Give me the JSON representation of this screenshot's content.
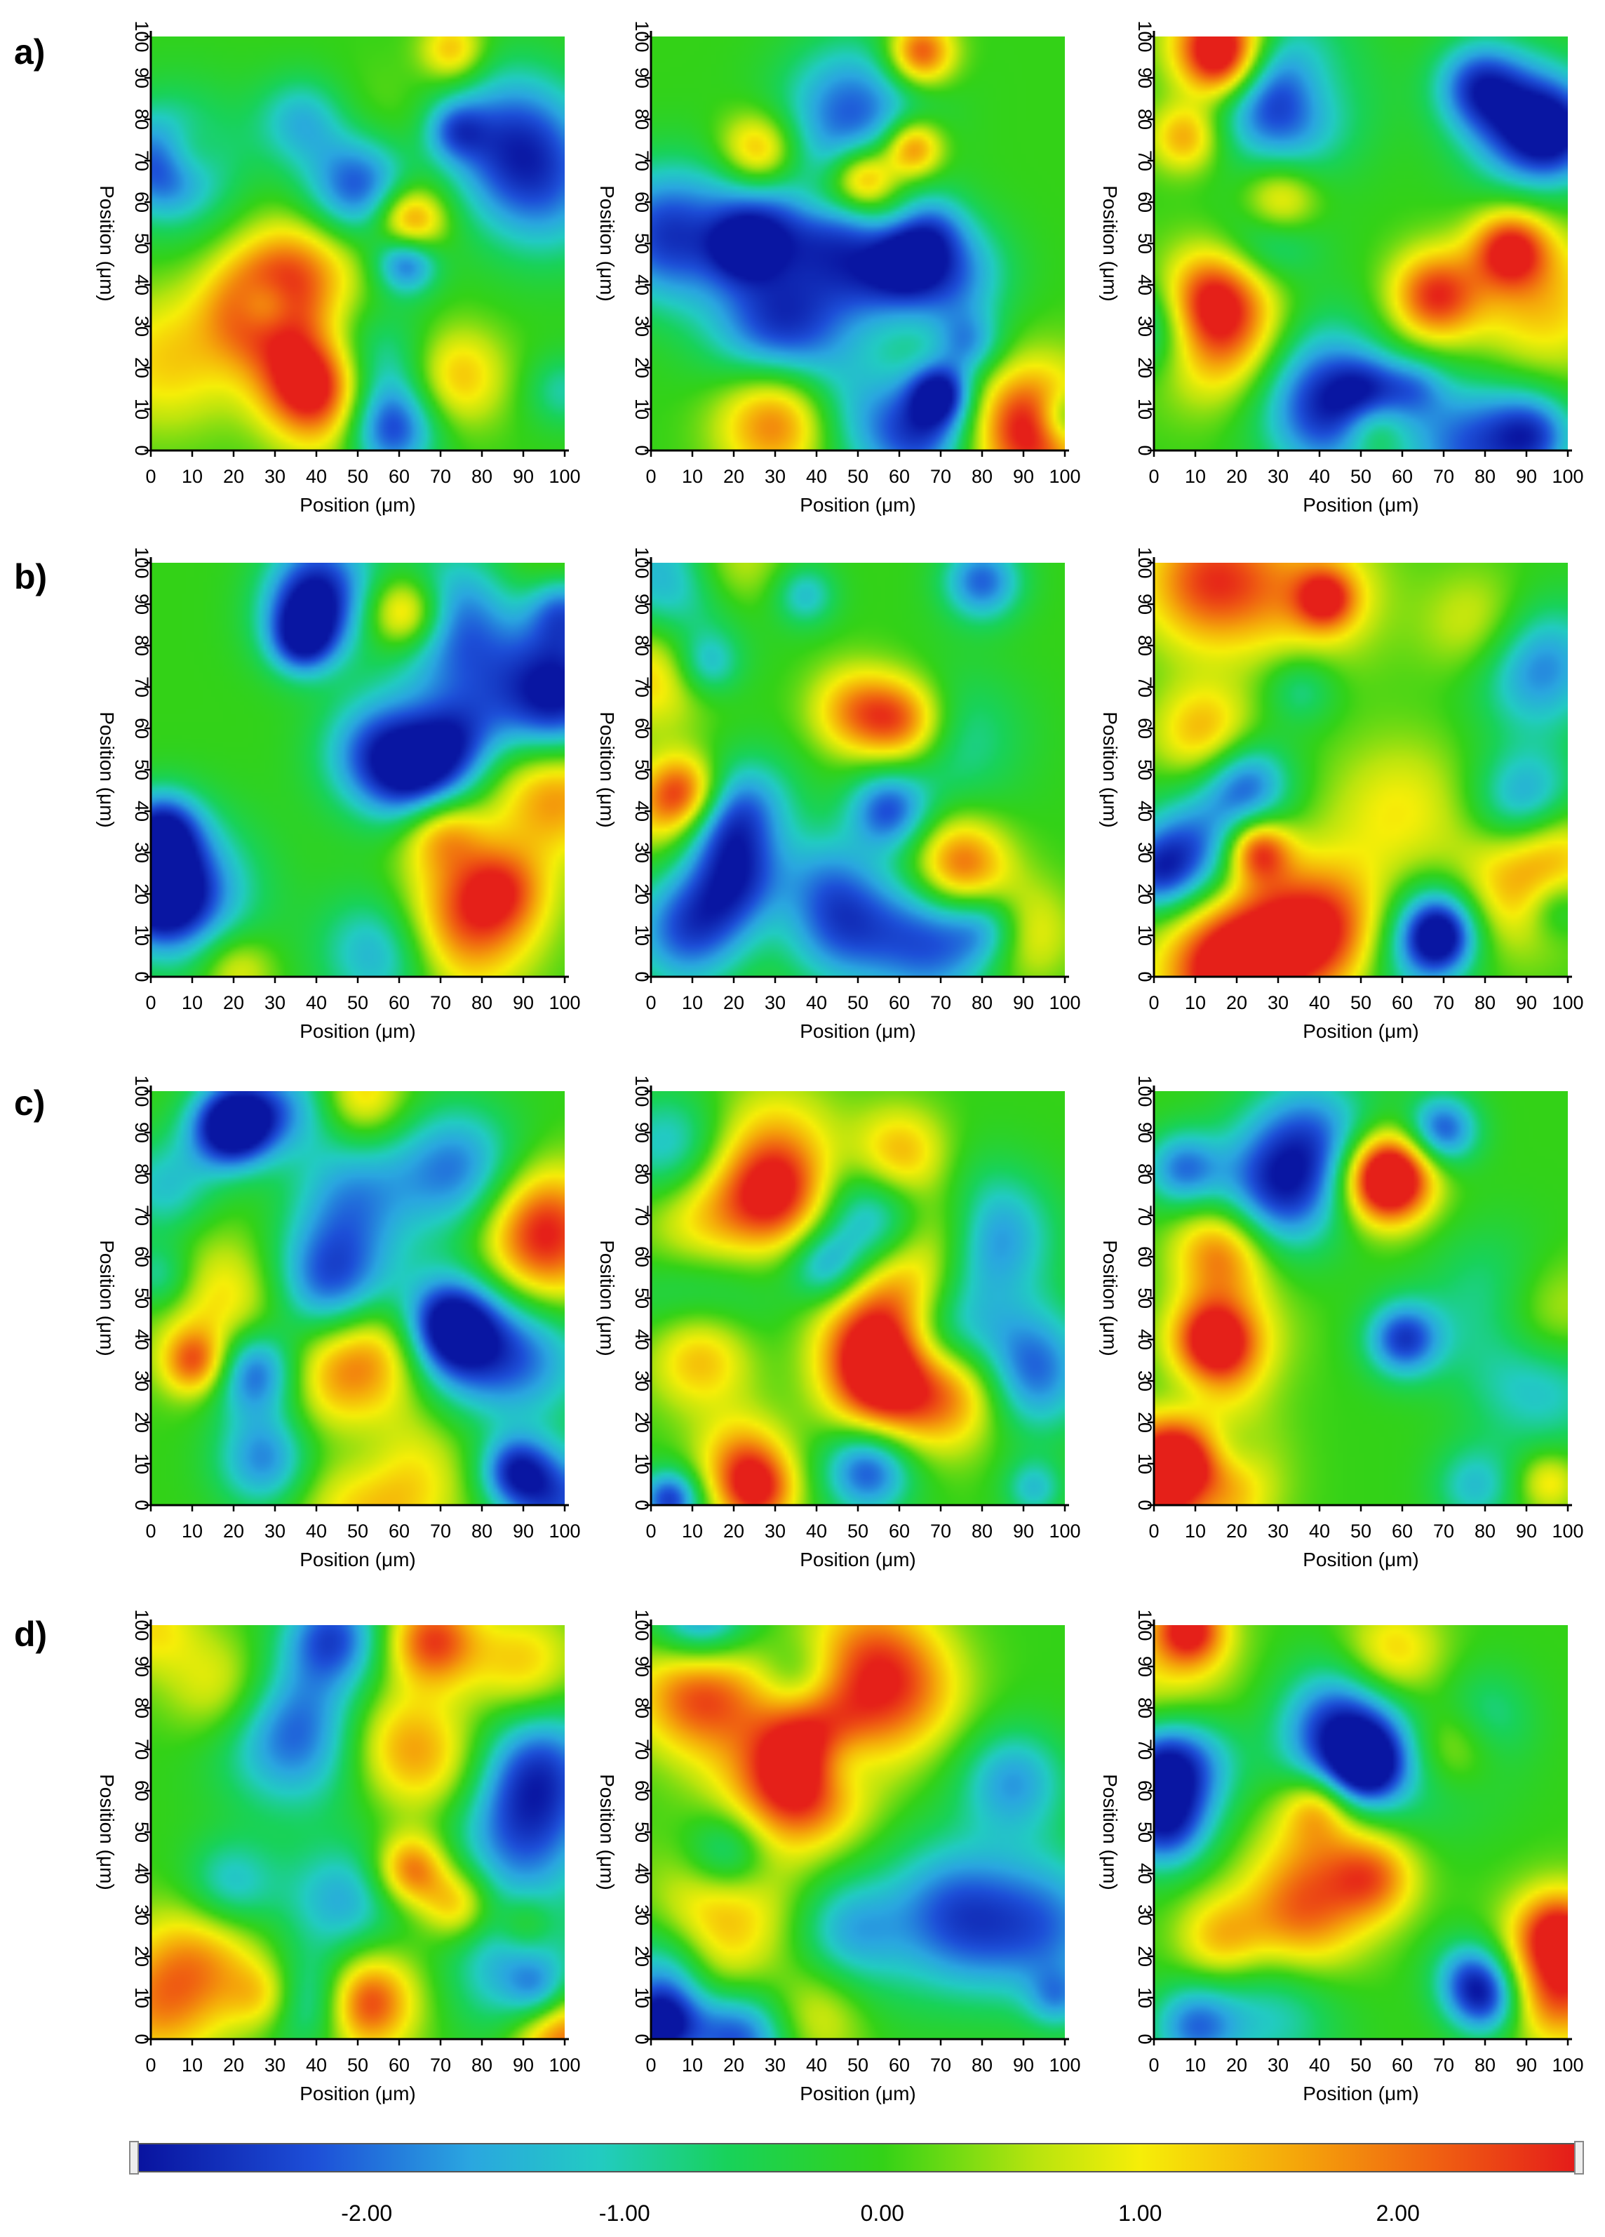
{
  "figure": {
    "rows": [
      {
        "label": "a)",
        "panels": [
          {
            "seed": 11
          },
          {
            "seed": 23
          },
          {
            "seed": 37
          }
        ]
      },
      {
        "label": "b)",
        "panels": [
          {
            "seed": 41
          },
          {
            "seed": 53
          },
          {
            "seed": 67
          }
        ]
      },
      {
        "label": "c)",
        "panels": [
          {
            "seed": 71
          },
          {
            "seed": 83
          },
          {
            "seed": 97
          }
        ]
      },
      {
        "label": "d)",
        "panels": [
          {
            "seed": 101
          },
          {
            "seed": 113
          },
          {
            "seed": 127
          }
        ]
      }
    ],
    "xlabel": "Position (μm)",
    "ylabel": "Position (μm)",
    "ticks": [
      "0",
      "10",
      "20",
      "30",
      "40",
      "50",
      "60",
      "70",
      "80",
      "90",
      "100"
    ]
  },
  "colorbar": {
    "min": -2.9,
    "max": 2.7,
    "tick_values": [
      -2,
      -1,
      0,
      1,
      2
    ],
    "tick_labels": [
      "-2.00",
      "-1.00",
      "0.00",
      "1.00",
      "2.00"
    ],
    "colors": [
      {
        "v": -2.9,
        "c": "#08129e"
      },
      {
        "v": -2.2,
        "c": "#1d4fd8"
      },
      {
        "v": -1.6,
        "c": "#2aa6e0"
      },
      {
        "v": -1.1,
        "c": "#22cbc2"
      },
      {
        "v": -0.6,
        "c": "#18d25a"
      },
      {
        "v": 0.0,
        "c": "#33d217"
      },
      {
        "v": 0.6,
        "c": "#b9e40e"
      },
      {
        "v": 1.0,
        "c": "#f6ee08"
      },
      {
        "v": 1.6,
        "c": "#f5a70a"
      },
      {
        "v": 2.2,
        "c": "#ef5a12"
      },
      {
        "v": 2.7,
        "c": "#e41a1a"
      }
    ]
  },
  "chart_data": {
    "type": "heatmap",
    "description": "12 surface height maps (4 rows a-d x 3 columns), each over 0-100 μm x 0-100 μm, sharing one colour scale",
    "xlim": [
      0,
      100
    ],
    "ylim": [
      0,
      100
    ],
    "colorbar_range": [
      -2.9,
      2.7
    ],
    "xlabel": "Position (μm)",
    "ylabel": "Position (μm)"
  }
}
